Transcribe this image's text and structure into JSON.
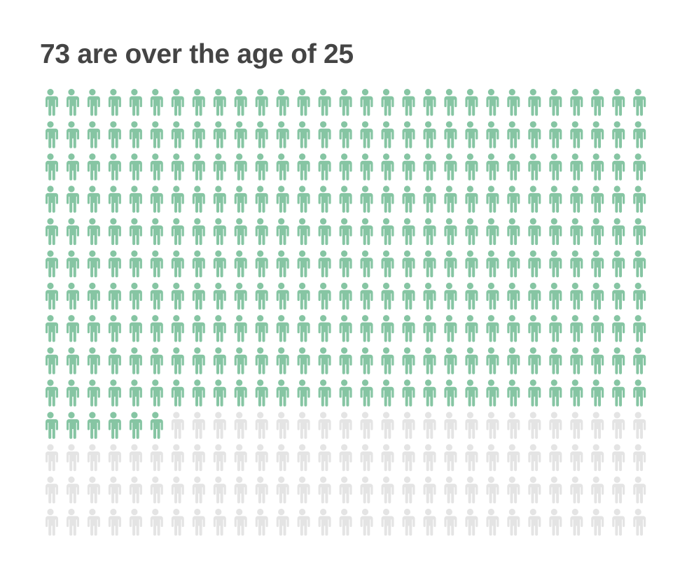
{
  "title": "73 are over the age of 25",
  "chart_data": {
    "type": "pictograph",
    "title": "73 are over the age of 25",
    "value_percent": 73,
    "icon": "person-icon",
    "colors": {
      "filled": "#86c5a3",
      "empty": "#e4e4e4"
    }
  }
}
